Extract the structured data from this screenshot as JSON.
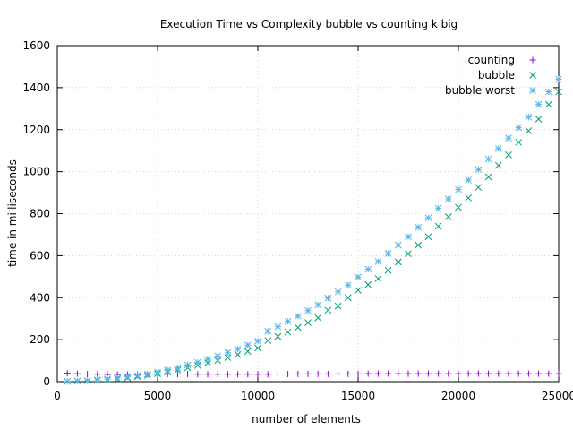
{
  "chart_data": {
    "type": "scatter",
    "title": "Execution Time vs Complexity bubble vs counting k big",
    "xlabel": "number of elements",
    "ylabel": "time in milliseconds",
    "xlim": [
      0,
      25000
    ],
    "ylim": [
      0,
      1600
    ],
    "xticks": [
      0,
      5000,
      10000,
      15000,
      20000,
      25000
    ],
    "yticks": [
      0,
      200,
      400,
      600,
      800,
      1000,
      1200,
      1400,
      1600
    ],
    "grid": true,
    "legend_position": "top-right",
    "series": [
      {
        "name": "counting",
        "marker": "plus",
        "color": "#9400d3",
        "x": [
          500,
          1000,
          1500,
          2000,
          2500,
          3000,
          3500,
          4000,
          4500,
          5000,
          5500,
          6000,
          6500,
          7000,
          7500,
          8000,
          8500,
          9000,
          9500,
          10000,
          10500,
          11000,
          11500,
          12000,
          12500,
          13000,
          13500,
          14000,
          14500,
          15000,
          15500,
          16000,
          16500,
          17000,
          17500,
          18000,
          18500,
          19000,
          19500,
          20000,
          20500,
          21000,
          21500,
          22000,
          22500,
          23000,
          23500,
          24000,
          24500,
          25000
        ],
        "y": [
          40,
          38,
          36,
          35,
          34,
          34,
          34,
          34,
          35,
          36,
          36,
          36,
          36,
          35,
          35,
          35,
          35,
          35,
          35,
          35,
          35,
          36,
          36,
          37,
          37,
          37,
          37,
          37,
          37,
          37,
          38,
          38,
          38,
          38,
          38,
          38,
          38,
          38,
          38,
          38,
          38,
          38,
          38,
          38,
          38,
          38,
          38,
          38,
          38,
          38
        ]
      },
      {
        "name": "bubble",
        "marker": "cross",
        "color": "#009e73",
        "x": [
          500,
          1000,
          1500,
          2000,
          2500,
          3000,
          3500,
          4000,
          4500,
          5000,
          5500,
          6000,
          6500,
          7000,
          7500,
          8000,
          8500,
          9000,
          9500,
          10000,
          10500,
          11000,
          11500,
          12000,
          12500,
          13000,
          13500,
          14000,
          14500,
          15000,
          15500,
          16000,
          16500,
          17000,
          17500,
          18000,
          18500,
          19000,
          19500,
          20000,
          20500,
          21000,
          21500,
          22000,
          22500,
          23000,
          23500,
          24000,
          24500,
          25000
        ],
        "y": [
          1,
          2,
          4,
          6,
          9,
          13,
          18,
          24,
          30,
          38,
          46,
          56,
          66,
          77,
          89,
          101,
          115,
          129,
          144,
          160,
          196,
          215,
          236,
          258,
          281,
          304,
          340,
          360,
          400,
          435,
          462,
          491,
          530,
          570,
          609,
          650,
          690,
          740,
          785,
          830,
          875,
          925,
          975,
          1030,
          1080,
          1140,
          1195,
          1250,
          1320,
          1380
        ]
      },
      {
        "name": "bubble worst",
        "marker": "star",
        "color": "#56b4e9",
        "x": [
          500,
          1000,
          1500,
          2000,
          2500,
          3000,
          3500,
          4000,
          4500,
          5000,
          5500,
          6000,
          6500,
          7000,
          7500,
          8000,
          8500,
          9000,
          9500,
          10000,
          10500,
          11000,
          11500,
          12000,
          12500,
          13000,
          13500,
          14000,
          14500,
          15000,
          15500,
          16000,
          16500,
          17000,
          17500,
          18000,
          18500,
          19000,
          19500,
          20000,
          20500,
          21000,
          21500,
          22000,
          22500,
          23000,
          23500,
          24000,
          24500,
          25000
        ],
        "y": [
          1,
          3,
          5,
          8,
          12,
          17,
          22,
          29,
          36,
          45,
          55,
          66,
          79,
          92,
          107,
          122,
          138,
          155,
          174,
          193,
          240,
          262,
          287,
          312,
          338,
          366,
          398,
          428,
          460,
          498,
          535,
          572,
          610,
          650,
          690,
          735,
          780,
          825,
          870,
          915,
          960,
          1010,
          1060,
          1110,
          1160,
          1210,
          1260,
          1320,
          1380,
          1440
        ]
      }
    ]
  }
}
